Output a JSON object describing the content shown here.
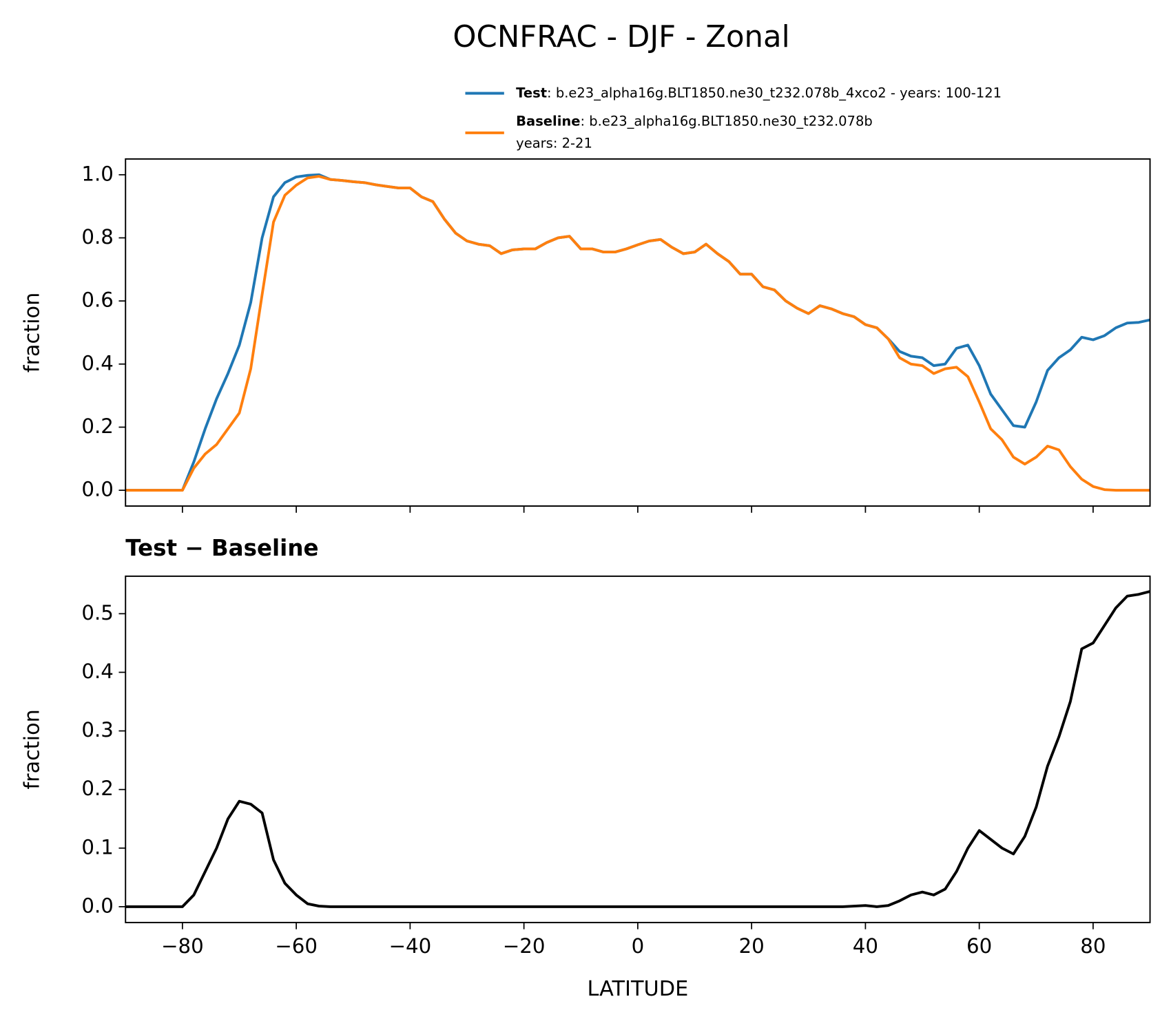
{
  "title": "OCNFRAC - DJF - Zonal",
  "chart_data": [
    {
      "type": "line",
      "ylabel": "fraction",
      "x": [
        -90,
        -88,
        -86,
        -84,
        -82,
        -80,
        -78,
        -76,
        -74,
        -72,
        -70,
        -68,
        -66,
        -64,
        -62,
        -60,
        -58,
        -56,
        -54,
        -52,
        -50,
        -48,
        -46,
        -44,
        -42,
        -40,
        -38,
        -36,
        -34,
        -32,
        -30,
        -28,
        -26,
        -24,
        -22,
        -20,
        -18,
        -16,
        -14,
        -12,
        -10,
        -8,
        -6,
        -4,
        -2,
        0,
        2,
        4,
        6,
        8,
        10,
        12,
        14,
        16,
        18,
        20,
        22,
        24,
        26,
        28,
        30,
        32,
        34,
        36,
        38,
        40,
        42,
        44,
        46,
        48,
        50,
        52,
        54,
        56,
        58,
        60,
        62,
        64,
        66,
        68,
        70,
        72,
        74,
        76,
        78,
        80,
        82,
        84,
        86,
        88,
        90
      ],
      "series": [
        {
          "name": "Test",
          "detail": [
            ": b.e23_alpha16g.BLT1850.ne30_t232.078b_4xco2 - years: 100-121"
          ],
          "color": "#1f77b4",
          "values": [
            0,
            0,
            0,
            0,
            0,
            0,
            0.09,
            0.195,
            0.29,
            0.37,
            0.46,
            0.595,
            0.8,
            0.93,
            0.975,
            0.993,
            0.998,
            1.0,
            0.985,
            0.982,
            0.978,
            0.975,
            0.968,
            0.963,
            0.958,
            0.958,
            0.93,
            0.915,
            0.86,
            0.815,
            0.79,
            0.78,
            0.775,
            0.75,
            0.762,
            0.765,
            0.765,
            0.785,
            0.8,
            0.805,
            0.765,
            0.765,
            0.755,
            0.755,
            0.765,
            0.778,
            0.79,
            0.795,
            0.77,
            0.75,
            0.755,
            0.78,
            0.75,
            0.725,
            0.685,
            0.685,
            0.645,
            0.635,
            0.6,
            0.577,
            0.56,
            0.585,
            0.575,
            0.56,
            0.55,
            0.525,
            0.515,
            0.48,
            0.44,
            0.425,
            0.42,
            0.395,
            0.4,
            0.45,
            0.46,
            0.395,
            0.305,
            0.255,
            0.205,
            0.2,
            0.28,
            0.38,
            0.42,
            0.445,
            0.485,
            0.477,
            0.49,
            0.515,
            0.53,
            0.532,
            0.54
          ]
        },
        {
          "name": "Baseline",
          "detail": [
            ": b.e23_alpha16g.BLT1850.ne30_t232.078b",
            "years: 2-21"
          ],
          "color": "#ff7f0e",
          "values": [
            0,
            0,
            0,
            0,
            0,
            0,
            0.07,
            0.115,
            0.145,
            0.195,
            0.245,
            0.385,
            0.62,
            0.85,
            0.935,
            0.967,
            0.99,
            0.995,
            0.985,
            0.982,
            0.978,
            0.975,
            0.968,
            0.963,
            0.958,
            0.958,
            0.93,
            0.915,
            0.86,
            0.815,
            0.79,
            0.78,
            0.775,
            0.75,
            0.762,
            0.765,
            0.765,
            0.785,
            0.8,
            0.805,
            0.765,
            0.765,
            0.755,
            0.755,
            0.765,
            0.778,
            0.79,
            0.795,
            0.77,
            0.75,
            0.755,
            0.78,
            0.75,
            0.725,
            0.685,
            0.685,
            0.645,
            0.635,
            0.6,
            0.577,
            0.56,
            0.585,
            0.575,
            0.56,
            0.55,
            0.525,
            0.515,
            0.48,
            0.42,
            0.4,
            0.395,
            0.37,
            0.385,
            0.39,
            0.36,
            0.28,
            0.195,
            0.16,
            0.105,
            0.083,
            0.105,
            0.14,
            0.128,
            0.075,
            0.035,
            0.012,
            0.002,
            0,
            0,
            0,
            0
          ]
        }
      ],
      "xlim": [
        -90,
        90
      ],
      "xticks": [
        -80,
        -60,
        -40,
        -20,
        0,
        20,
        40,
        60,
        80
      ],
      "ylim": [
        -0.05,
        1.05
      ],
      "yticks": [
        {
          "value": 0,
          "label": "0.0"
        },
        0.2,
        0.4,
        0.6,
        0.8,
        {
          "value": 1,
          "label": "1.0"
        }
      ]
    },
    {
      "type": "line",
      "title": "Test − Baseline",
      "ylabel": "fraction",
      "xlabel": "LATITUDE",
      "x": [
        -90,
        -88,
        -86,
        -84,
        -82,
        -80,
        -78,
        -76,
        -74,
        -72,
        -70,
        -68,
        -66,
        -64,
        -62,
        -60,
        -58,
        -56,
        -54,
        -52,
        -50,
        -48,
        -46,
        -44,
        -42,
        -40,
        -38,
        -36,
        -34,
        -32,
        -30,
        -28,
        -26,
        -24,
        -22,
        -20,
        -18,
        -16,
        -14,
        -12,
        -10,
        -8,
        -6,
        -4,
        -2,
        0,
        2,
        4,
        6,
        8,
        10,
        12,
        14,
        16,
        18,
        20,
        22,
        24,
        26,
        28,
        30,
        32,
        34,
        36,
        38,
        40,
        42,
        44,
        46,
        48,
        50,
        52,
        54,
        56,
        58,
        60,
        62,
        64,
        66,
        68,
        70,
        72,
        74,
        76,
        78,
        80,
        82,
        84,
        86,
        88,
        90
      ],
      "series": [
        {
          "color": "#000000",
          "values": [
            0,
            0,
            0,
            0,
            0,
            0,
            0.02,
            0.06,
            0.1,
            0.15,
            0.18,
            0.175,
            0.16,
            0.08,
            0.04,
            0.02,
            0.005,
            0.001,
            0,
            0,
            0,
            0,
            0,
            0,
            0,
            0,
            0,
            0,
            0,
            0,
            0,
            0,
            0,
            0,
            0,
            0,
            0,
            0,
            0,
            0,
            0,
            0,
            0,
            0,
            0,
            0,
            0,
            0,
            0,
            0,
            0,
            0,
            0,
            0,
            0,
            0,
            0,
            0,
            0,
            0,
            0,
            0,
            0,
            0,
            0.001,
            0.002,
            0,
            0.002,
            0.01,
            0.02,
            0.025,
            0.02,
            0.03,
            0.06,
            0.1,
            0.13,
            0.115,
            0.1,
            0.09,
            0.12,
            0.17,
            0.24,
            0.29,
            0.35,
            0.44,
            0.45,
            0.48,
            0.51,
            0.53,
            0.533,
            0.538
          ]
        }
      ],
      "xlim": [
        -90,
        90
      ],
      "xticks": [
        {
          "value": -80,
          "label": "−80"
        },
        {
          "value": -60,
          "label": "−60"
        },
        {
          "value": -40,
          "label": "−40"
        },
        {
          "value": -20,
          "label": "−20"
        },
        0,
        20,
        40,
        60,
        80
      ],
      "ylim": [
        -0.027,
        0.564
      ],
      "yticks": [
        {
          "value": 0,
          "label": "0.0"
        },
        0.1,
        0.2,
        0.3,
        0.4,
        0.5
      ]
    }
  ]
}
